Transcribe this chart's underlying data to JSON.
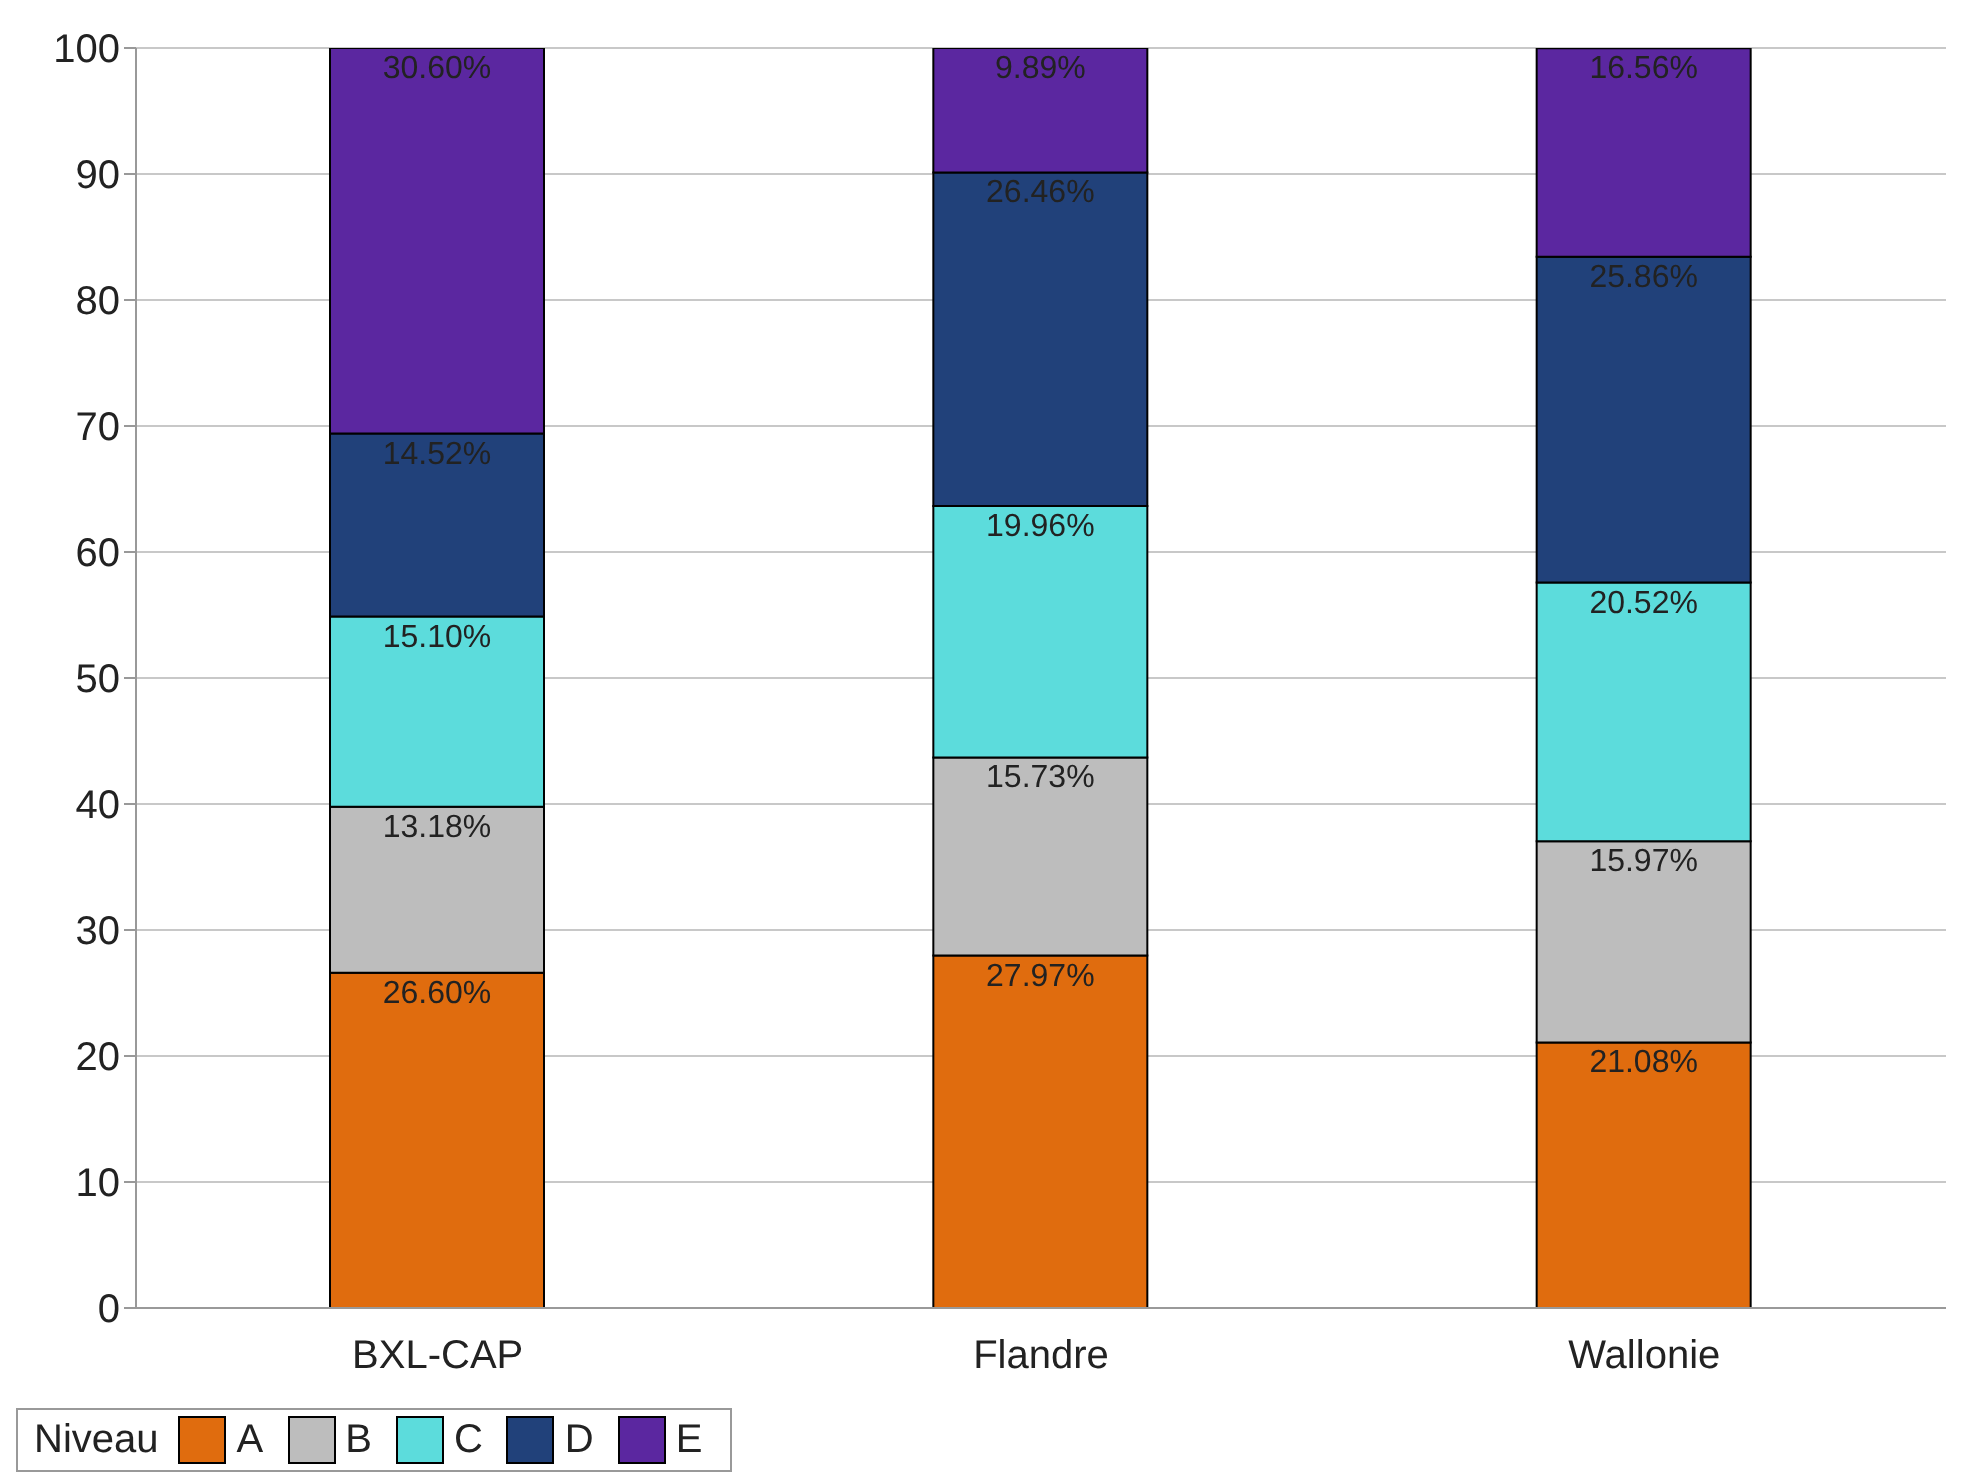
{
  "chart_data": {
    "type": "bar",
    "stacked": true,
    "categories": [
      "BXL-CAP",
      "Flandre",
      "Wallonie"
    ],
    "legend_title": "Niveau",
    "legend": "bottom",
    "grid": "y",
    "ylim": [
      0,
      100
    ],
    "yticks": [
      0,
      10,
      20,
      30,
      40,
      50,
      60,
      70,
      80,
      90,
      100
    ],
    "series": [
      {
        "name": "A",
        "color": "#e06c0e",
        "values": [
          26.6,
          27.97,
          21.08
        ],
        "value_labels": [
          "26.60%",
          "27.97%",
          "21.08%"
        ]
      },
      {
        "name": "B",
        "color": "#bdbdbd",
        "values": [
          13.18,
          15.73,
          15.97
        ],
        "value_labels": [
          "13.18%",
          "15.73%",
          "15.97%"
        ]
      },
      {
        "name": "C",
        "color": "#5cdcdc",
        "values": [
          15.1,
          19.96,
          20.52
        ],
        "value_labels": [
          "15.10%",
          "19.96%",
          "20.52%"
        ]
      },
      {
        "name": "D",
        "color": "#21417a",
        "values": [
          14.52,
          26.46,
          25.86
        ],
        "value_labels": [
          "14.52%",
          "26.46%",
          "25.86%"
        ]
      },
      {
        "name": "E",
        "color": "#5b27a0",
        "values": [
          30.6,
          9.89,
          16.56
        ],
        "value_labels": [
          "30.60%",
          "9.89%",
          "16.56%"
        ]
      }
    ]
  }
}
